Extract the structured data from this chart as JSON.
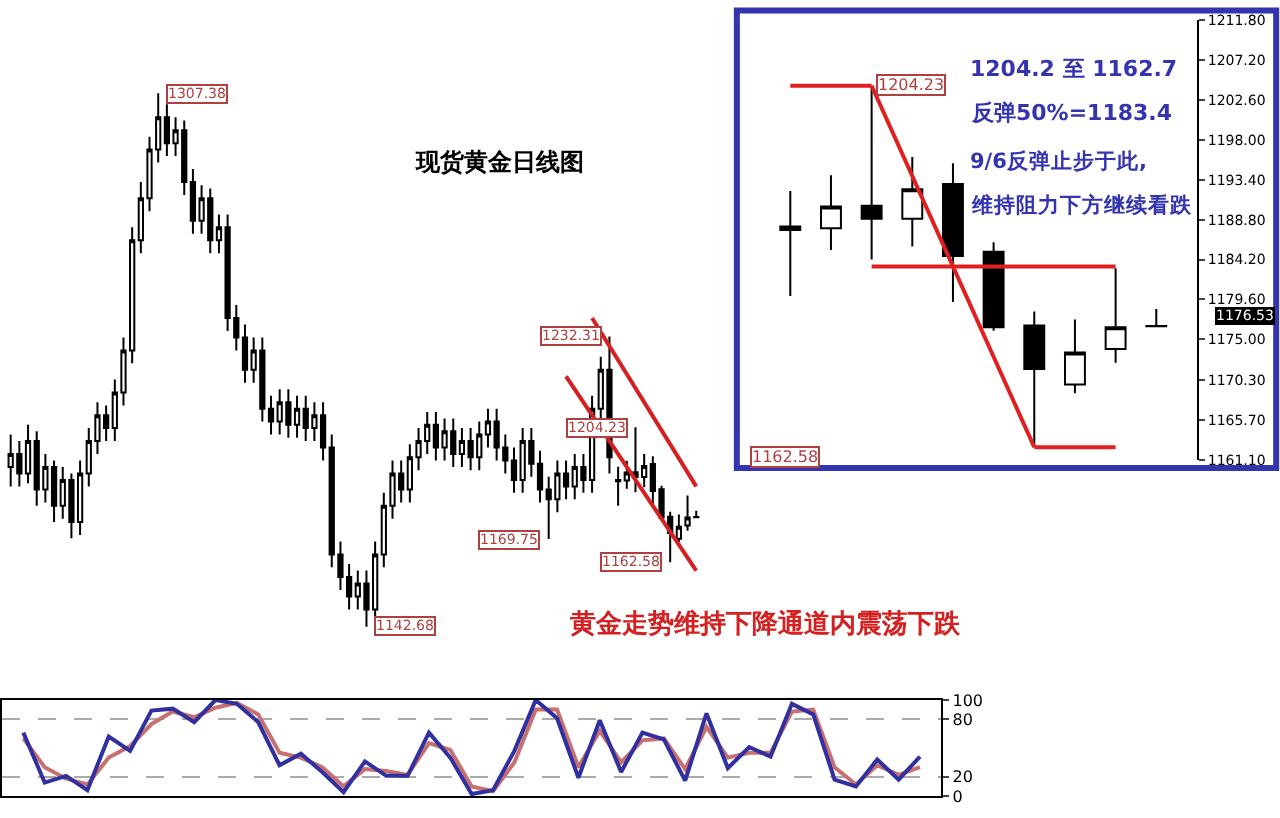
{
  "chart_data": [
    {
      "type": "candlestick",
      "title": "现货黄金日线图",
      "tick_labels": false,
      "grid": false,
      "annotations": [
        "黄金走势维持下降通道内震荡下跌",
        {
          "text": "1307.38",
          "y": 1307.38
        },
        {
          "text": "1142.68",
          "y": 1142.68
        },
        {
          "text": "1232.31",
          "y": 1232.31
        },
        {
          "text": "1169.75",
          "y": 1169.75
        },
        {
          "text": "1204.23",
          "y": 1204.23
        },
        {
          "text": "1162.58",
          "y": 1162.58
        }
      ],
      "categories": [
        null,
        null,
        null,
        null,
        null,
        null,
        null,
        null,
        null,
        null,
        null,
        null,
        null,
        null,
        null,
        null,
        null,
        null,
        null,
        null,
        null,
        null,
        null,
        null,
        null,
        null,
        null,
        null,
        null,
        null,
        null,
        null,
        null,
        null,
        null,
        null,
        null,
        null,
        null,
        null,
        null,
        null,
        null,
        null,
        null,
        null,
        null,
        null,
        null,
        null,
        null,
        null,
        null,
        null,
        null,
        null,
        null,
        null,
        null,
        null,
        null,
        null,
        null,
        null,
        null,
        null,
        null,
        null,
        null,
        null,
        null,
        null,
        null,
        null,
        null,
        null,
        null,
        null,
        null,
        null
      ],
      "ohlc": [
        [
          1192,
          1202,
          1186,
          1196
        ],
        [
          1196,
          1200,
          1186,
          1190
        ],
        [
          1190,
          1205,
          1187,
          1200
        ],
        [
          1200,
          1203,
          1180,
          1185
        ],
        [
          1185,
          1196,
          1181,
          1192
        ],
        [
          1192,
          1194,
          1175,
          1180
        ],
        [
          1180,
          1192,
          1176,
          1188
        ],
        [
          1188,
          1190,
          1170,
          1175
        ],
        [
          1175,
          1194,
          1171,
          1190
        ],
        [
          1190,
          1204,
          1186,
          1200
        ],
        [
          1200,
          1212,
          1196,
          1208
        ],
        [
          1208,
          1211,
          1200,
          1204
        ],
        [
          1204,
          1219,
          1200,
          1215
        ],
        [
          1215,
          1232,
          1211,
          1228
        ],
        [
          1228,
          1266,
          1224,
          1262
        ],
        [
          1262,
          1280,
          1258,
          1275
        ],
        [
          1275,
          1294,
          1271,
          1290
        ],
        [
          1290,
          1307.38,
          1286,
          1300
        ],
        [
          1300,
          1304,
          1288,
          1292
        ],
        [
          1292,
          1300,
          1288,
          1296
        ],
        [
          1296,
          1299,
          1276,
          1280
        ],
        [
          1280,
          1284,
          1264,
          1268
        ],
        [
          1268,
          1279,
          1264,
          1275
        ],
        [
          1275,
          1278,
          1258,
          1262
        ],
        [
          1262,
          1270,
          1258,
          1266
        ],
        [
          1266,
          1270,
          1234,
          1238
        ],
        [
          1238,
          1242,
          1228,
          1232
        ],
        [
          1232,
          1236,
          1218,
          1222
        ],
        [
          1222,
          1232,
          1218,
          1228
        ],
        [
          1228,
          1232,
          1206,
          1210
        ],
        [
          1210,
          1214,
          1202,
          1206
        ],
        [
          1206,
          1216,
          1202,
          1212
        ],
        [
          1212,
          1216,
          1201,
          1205
        ],
        [
          1205,
          1214,
          1201,
          1210
        ],
        [
          1210,
          1214,
          1200,
          1204
        ],
        [
          1204,
          1212,
          1200,
          1208
        ],
        [
          1208,
          1212,
          1194,
          1198
        ],
        [
          1198,
          1202,
          1161,
          1165
        ],
        [
          1165,
          1169,
          1154,
          1158
        ],
        [
          1158,
          1162,
          1148,
          1152
        ],
        [
          1152,
          1160,
          1148,
          1156
        ],
        [
          1156,
          1160,
          1142.68,
          1148
        ],
        [
          1148,
          1169,
          1144,
          1165
        ],
        [
          1165,
          1184,
          1161,
          1180
        ],
        [
          1180,
          1194,
          1176,
          1190
        ],
        [
          1190,
          1194,
          1181,
          1185
        ],
        [
          1185,
          1199,
          1181,
          1195
        ],
        [
          1195,
          1204,
          1191,
          1200
        ],
        [
          1200,
          1209,
          1196,
          1205
        ],
        [
          1205,
          1209,
          1194,
          1198
        ],
        [
          1198,
          1207,
          1194,
          1203
        ],
        [
          1203,
          1207,
          1192,
          1196
        ],
        [
          1196,
          1204,
          1192,
          1200
        ],
        [
          1200,
          1204,
          1191,
          1195
        ],
        [
          1195,
          1206,
          1191,
          1202
        ],
        [
          1202,
          1210,
          1198,
          1206
        ],
        [
          1206,
          1210,
          1194,
          1198
        ],
        [
          1198,
          1202,
          1190,
          1194
        ],
        [
          1194,
          1198,
          1184,
          1188
        ],
        [
          1188,
          1204,
          1184,
          1200
        ],
        [
          1200,
          1204,
          1189,
          1193
        ],
        [
          1193,
          1197,
          1181,
          1185
        ],
        [
          1185,
          1189,
          1169.75,
          1182
        ],
        [
          1182,
          1194,
          1178,
          1190
        ],
        [
          1190,
          1194,
          1182,
          1186
        ],
        [
          1186,
          1196,
          1182,
          1192
        ],
        [
          1192,
          1196,
          1184,
          1188
        ],
        [
          1188,
          1214,
          1184,
          1210
        ],
        [
          1210,
          1226,
          1206,
          1222
        ],
        [
          1222,
          1232.31,
          1190,
          1195
        ],
        [
          1187.6,
          1192.1,
          1180.0,
          1188.0
        ],
        [
          1187.8,
          1193.9,
          1185.3,
          1190.3
        ],
        [
          1190.4,
          1204.23,
          1184.2,
          1188.9
        ],
        [
          1188.9,
          1196.0,
          1185.7,
          1192.3
        ],
        [
          1192.9,
          1195.3,
          1179.3,
          1184.6
        ],
        [
          1185.1,
          1186.2,
          1176.0,
          1176.4
        ],
        [
          1176.6,
          1178.2,
          1162.58,
          1171.6
        ],
        [
          1169.8,
          1177.3,
          1168.8,
          1173.5
        ],
        [
          1173.9,
          1183.2,
          1172.3,
          1176.4
        ],
        [
          1176.5,
          1178.5,
          1176.4,
          1176.53
        ]
      ],
      "series": [
        {
          "type": "line",
          "color": "#d42020",
          "values": [
            null,
            null,
            null,
            null,
            null,
            null,
            null,
            null,
            null,
            null,
            null,
            null,
            null,
            null,
            null,
            null,
            null,
            null,
            null,
            null,
            null,
            null,
            null,
            null,
            null,
            null,
            null,
            null,
            null,
            null,
            null,
            null,
            null,
            null,
            null,
            null,
            null,
            null,
            null,
            null,
            null,
            null,
            null,
            null,
            null,
            null,
            null,
            null,
            null,
            null,
            null,
            null,
            null,
            null,
            null,
            null,
            null,
            null,
            null,
            null,
            null,
            null,
            null,
            null,
            null,
            null,
            null,
            1238,
            null,
            null,
            null,
            null,
            null,
            null,
            null,
            null,
            null,
            null,
            null,
            1186
          ]
        },
        {
          "type": "line",
          "color": "#d42020",
          "values": [
            null,
            null,
            null,
            null,
            null,
            null,
            null,
            null,
            null,
            null,
            null,
            null,
            null,
            null,
            null,
            null,
            null,
            null,
            null,
            null,
            null,
            null,
            null,
            null,
            null,
            null,
            null,
            null,
            null,
            null,
            null,
            null,
            null,
            null,
            null,
            null,
            null,
            null,
            null,
            null,
            null,
            null,
            null,
            null,
            null,
            null,
            null,
            null,
            null,
            null,
            null,
            null,
            null,
            null,
            null,
            null,
            null,
            null,
            null,
            null,
            null,
            null,
            null,
            null,
            1220,
            null,
            null,
            null,
            null,
            null,
            null,
            null,
            null,
            null,
            null,
            null,
            null,
            null,
            null,
            1160
          ]
        }
      ]
    },
    {
      "type": "candlestick",
      "tick_labels": "y",
      "grid": false,
      "annotations": [
        "1204.2 至 1162.7",
        "反弹50%=1183.4",
        "9/6反弹止步于此,",
        "维持阻力下方继续看跌",
        "1204.23",
        "1162.58",
        "1176.53"
      ],
      "categories": [
        null,
        null,
        null,
        null,
        null,
        null,
        null,
        null,
        null,
        null
      ],
      "ylim": [
        1161.1,
        1211.8
      ],
      "yticks": [
        {
          "value": 1161.1,
          "label": "1161.10"
        },
        {
          "value": 1165.7,
          "label": "1165.70"
        },
        {
          "value": 1170.3,
          "label": "1170.30"
        },
        {
          "value": 1175.0,
          "label": "1175.00"
        },
        {
          "value": 1179.6,
          "label": "1179.60"
        },
        {
          "value": 1184.2,
          "label": "1184.20"
        },
        {
          "value": 1188.8,
          "label": "1188.80"
        },
        {
          "value": 1193.4,
          "label": "1193.40"
        },
        {
          "value": 1198.0,
          "label": "1198.00"
        },
        {
          "value": 1202.6,
          "label": "1202.60"
        },
        {
          "value": 1207.2,
          "label": "1207.20"
        },
        {
          "value": 1211.8,
          "label": "1211.80"
        }
      ],
      "ohlc": [
        [
          1187.6,
          1192.1,
          1180.0,
          1188.0
        ],
        [
          1187.8,
          1193.9,
          1185.3,
          1190.3
        ],
        [
          1190.4,
          1204.23,
          1184.2,
          1188.9
        ],
        [
          1188.9,
          1196.0,
          1185.7,
          1192.3
        ],
        [
          1192.9,
          1195.3,
          1179.3,
          1184.6
        ],
        [
          1185.1,
          1186.2,
          1176.0,
          1176.4
        ],
        [
          1176.6,
          1178.2,
          1162.58,
          1171.6
        ],
        [
          1169.8,
          1177.3,
          1168.8,
          1173.5
        ],
        [
          1173.9,
          1183.2,
          1172.3,
          1176.4
        ],
        [
          1176.5,
          1178.5,
          1176.4,
          1176.53
        ]
      ],
      "series": [
        {
          "type": "line",
          "color": "#e02020",
          "values": [
            1204.23,
            1204.23,
            1204.23,
            null,
            null,
            null,
            null,
            null,
            null,
            null
          ]
        },
        {
          "type": "line",
          "color": "#e02020",
          "values": [
            null,
            null,
            1204.23,
            null,
            null,
            null,
            1162.58,
            null,
            null,
            null
          ]
        },
        {
          "type": "line",
          "color": "#e02020",
          "values": [
            null,
            null,
            null,
            null,
            null,
            null,
            1162.58,
            1162.58,
            1162.58,
            null
          ]
        },
        {
          "type": "line",
          "color": "#e02020",
          "values": [
            null,
            null,
            1183.4,
            null,
            null,
            null,
            null,
            null,
            1183.4,
            null
          ]
        }
      ]
    },
    {
      "type": "line",
      "tick_labels": "y",
      "grid": "y",
      "ylim": [
        0,
        100
      ],
      "yticks": [
        0,
        20,
        80,
        100
      ],
      "categories": [
        null,
        null,
        null,
        null,
        null,
        null,
        null,
        null,
        null,
        null,
        null,
        null,
        null,
        null,
        null,
        null,
        null,
        null,
        null,
        null,
        null,
        null,
        null,
        null,
        null,
        null,
        null,
        null,
        null,
        null,
        null,
        null,
        null,
        null,
        null,
        null,
        null,
        null,
        null,
        null,
        null,
        null,
        null
      ],
      "series": [
        {
          "color": "#c87070",
          "values": [
            60,
            30,
            18,
            12,
            40,
            52,
            75,
            88,
            82,
            92,
            97,
            85,
            45,
            40,
            30,
            10,
            28,
            26,
            22,
            55,
            48,
            10,
            5,
            35,
            90,
            90,
            30,
            68,
            35,
            58,
            60,
            28,
            72,
            40,
            45,
            45,
            88,
            90,
            30,
            12,
            32,
            22,
            30
          ]
        },
        {
          "color": "#3030a0",
          "values": [
            66,
            14,
            21,
            6,
            62,
            47,
            89,
            91,
            77,
            100,
            96,
            77,
            32,
            44,
            25,
            4,
            36,
            21,
            21,
            66,
            40,
            2,
            6,
            47,
            100,
            81,
            19,
            79,
            25,
            66,
            59,
            16,
            86,
            29,
            51,
            41,
            96,
            85,
            17,
            10,
            38,
            17,
            41
          ]
        }
      ]
    }
  ]
}
